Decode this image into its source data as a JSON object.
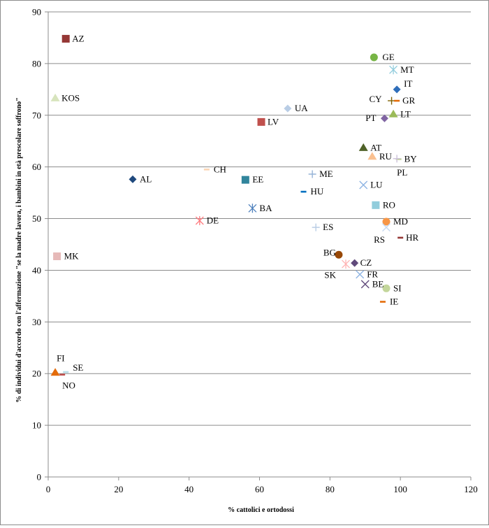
{
  "chart_data": {
    "type": "scatter",
    "title": "",
    "xlabel": "% cattolici e ortodossi",
    "ylabel": "% di individui d'accordo con l'affermazione \"se la madre lavora, i bambini in età prescolare soffrono\"",
    "xlim": [
      0,
      120
    ],
    "ylim": [
      0,
      90
    ],
    "x_ticks": [
      0,
      20,
      40,
      60,
      80,
      100,
      120
    ],
    "y_ticks": [
      0,
      10,
      20,
      30,
      40,
      50,
      60,
      70,
      80,
      90
    ],
    "grid": "horizontal",
    "legend": "none",
    "points": [
      {
        "label": "AZ",
        "x": 5,
        "y": 84.8,
        "marker": "square",
        "color": "#953735"
      },
      {
        "label": "GE",
        "x": 92.5,
        "y": 81.2,
        "marker": "circle",
        "color": "#77b545"
      },
      {
        "label": "MT",
        "x": 98,
        "y": 78.8,
        "marker": "asterisk",
        "color": "#93cddd"
      },
      {
        "label": "IT",
        "x": 99,
        "y": 75,
        "marker": "diamond",
        "color": "#2f6eba"
      },
      {
        "label": "KOS",
        "x": 2,
        "y": 73.3,
        "marker": "triangle",
        "color": "#d7e4bd"
      },
      {
        "label": "CY",
        "x": 97.5,
        "y": 72.8,
        "marker": "plus",
        "color": "#7f6000"
      },
      {
        "label": "GR",
        "x": 99,
        "y": 72.8,
        "marker": "dash",
        "color": "#e46c0a"
      },
      {
        "label": "UA",
        "x": 68,
        "y": 71.3,
        "marker": "diamond",
        "color": "#b9cde5"
      },
      {
        "label": "LT",
        "x": 98,
        "y": 70.2,
        "marker": "triangle",
        "color": "#9bbb59"
      },
      {
        "label": "PT",
        "x": 95.5,
        "y": 69.4,
        "marker": "diamond",
        "color": "#8064a2"
      },
      {
        "label": "LV",
        "x": 60.5,
        "y": 68.7,
        "marker": "square",
        "color": "#c0504d"
      },
      {
        "label": "AT",
        "x": 89.5,
        "y": 63.7,
        "marker": "triangle",
        "color": "#4f6228"
      },
      {
        "label": "RU",
        "x": 92,
        "y": 62,
        "marker": "triangle",
        "color": "#fac090"
      },
      {
        "label": "BY",
        "x": 99.5,
        "y": 61.5,
        "marker": "dash",
        "color": "#c3d69b"
      },
      {
        "label": "PL",
        "x": 99,
        "y": 61.6,
        "marker": "plus",
        "color": "#ccc1da"
      },
      {
        "label": "CH",
        "x": 45,
        "y": 59.5,
        "marker": "dash",
        "color": "#fbd5b5"
      },
      {
        "label": "ME",
        "x": 75,
        "y": 58.6,
        "marker": "plus",
        "color": "#95b3d7"
      },
      {
        "label": "AL",
        "x": 24,
        "y": 57.6,
        "marker": "diamond",
        "color": "#1f497d"
      },
      {
        "label": "EE",
        "x": 56,
        "y": 57.5,
        "marker": "square",
        "color": "#31859c"
      },
      {
        "label": "LU",
        "x": 89.5,
        "y": 56.5,
        "marker": "cross",
        "color": "#8eb4e3"
      },
      {
        "label": "HU",
        "x": 72.5,
        "y": 55.2,
        "marker": "dash",
        "color": "#0070c0"
      },
      {
        "label": "RO",
        "x": 93,
        "y": 52.6,
        "marker": "square",
        "color": "#92cddc"
      },
      {
        "label": "BA",
        "x": 58,
        "y": 52,
        "marker": "asterisk",
        "color": "#4f81bd"
      },
      {
        "label": "DE",
        "x": 43,
        "y": 49.6,
        "marker": "asterisk",
        "color": "#ff7c80"
      },
      {
        "label": "MD",
        "x": 96,
        "y": 49.4,
        "marker": "circle",
        "color": "#f79646"
      },
      {
        "label": "RS",
        "x": 96,
        "y": 48.3,
        "marker": "cross",
        "color": "#c6d9f1"
      },
      {
        "label": "ES",
        "x": 76,
        "y": 48.3,
        "marker": "plus",
        "color": "#b9cde5"
      },
      {
        "label": "HR",
        "x": 100,
        "y": 46.3,
        "marker": "dash",
        "color": "#953735"
      },
      {
        "label": "BG",
        "x": 82.5,
        "y": 43,
        "marker": "circle",
        "color": "#984807"
      },
      {
        "label": "MK",
        "x": 2.5,
        "y": 42.7,
        "marker": "square",
        "color": "#e6b9b8"
      },
      {
        "label": "CZ",
        "x": 87,
        "y": 41.4,
        "marker": "diamond",
        "color": "#604a7b"
      },
      {
        "label": "SK",
        "x": 84.5,
        "y": 41.2,
        "marker": "asterisk",
        "color": "#ffb3b3"
      },
      {
        "label": "FR",
        "x": 88.5,
        "y": 39.2,
        "marker": "cross",
        "color": "#8eb4e3"
      },
      {
        "label": "BE",
        "x": 90,
        "y": 37.3,
        "marker": "cross",
        "color": "#604a7b"
      },
      {
        "label": "SI",
        "x": 96,
        "y": 36.5,
        "marker": "circle",
        "color": "#c3d69b"
      },
      {
        "label": "IE",
        "x": 95,
        "y": 33.9,
        "marker": "dash",
        "color": "#e46c0a"
      },
      {
        "label": "FI",
        "x": 2,
        "y": 20.2,
        "marker": "triangle",
        "color": "#e46c0a"
      },
      {
        "label": "SE",
        "x": 5,
        "y": 20.3,
        "marker": "dash",
        "color": "#b7dde8"
      },
      {
        "label": "NO",
        "x": 4,
        "y": 19.8,
        "marker": "dash",
        "color": "#c0504d"
      }
    ]
  }
}
